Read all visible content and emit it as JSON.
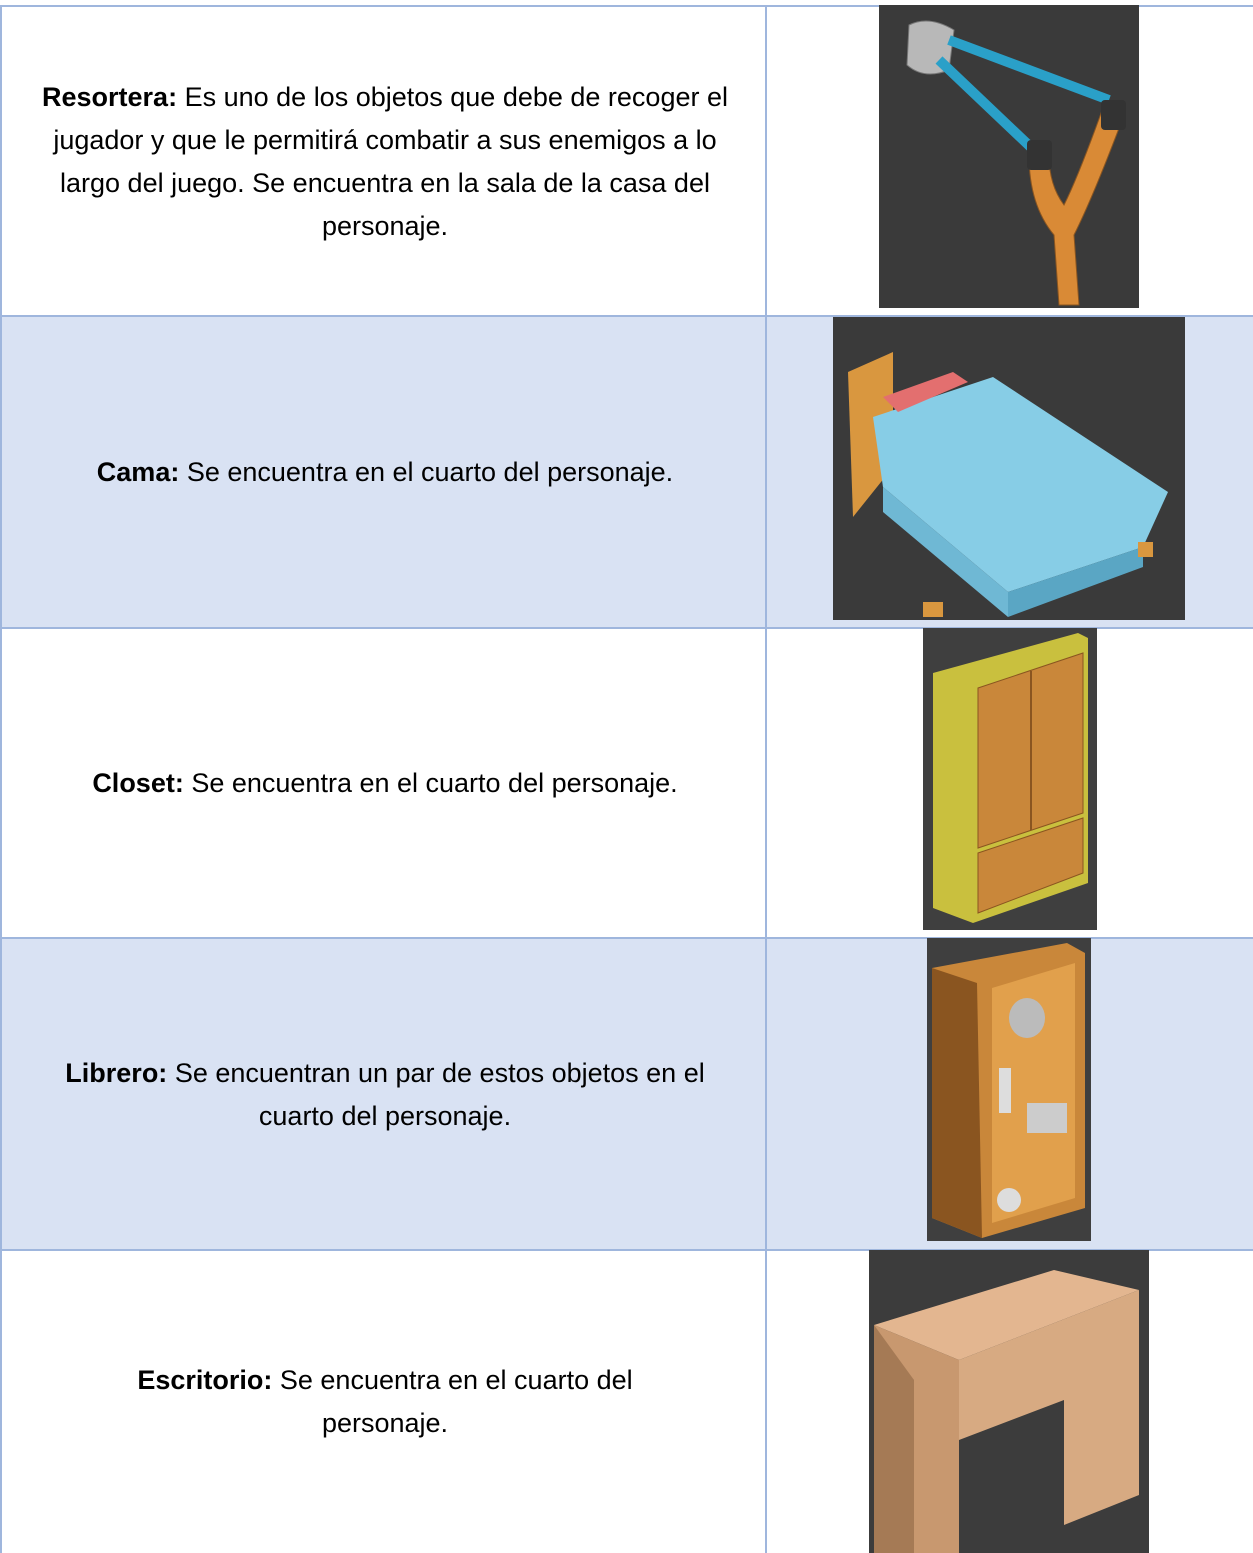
{
  "table": {
    "rows": [
      {
        "term": "Resortera:",
        "description": "Es uno de los objetos que debe de recoger el jugador y que le permitirá combatir a sus enemigos a lo largo del juego. Se encuentra en la sala de la casa del personaje."
      },
      {
        "term": "Cama:",
        "description": "Se encuentra en el cuarto del personaje."
      },
      {
        "term": "Closet:",
        "description": "Se encuentra en el cuarto del personaje."
      },
      {
        "term": "Librero:",
        "description": "Se encuentran un par de estos objetos en el cuarto del personaje."
      },
      {
        "term": "Escritorio:",
        "description": "Se encuentra en el cuarto del personaje."
      }
    ]
  }
}
